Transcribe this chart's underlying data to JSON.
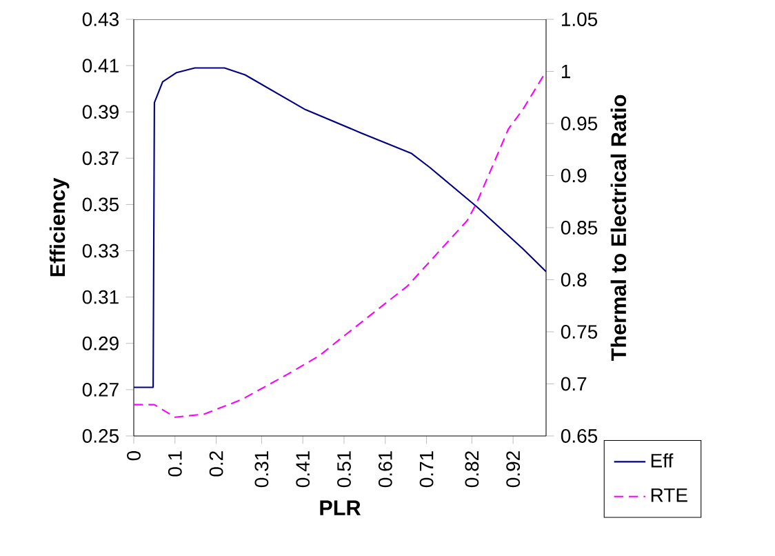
{
  "chart_data": {
    "type": "line",
    "xlabel": "PLR",
    "ylabel": "Efficiency",
    "y2label": "Thermal to Electrical Ratio",
    "xlim": [
      0,
      1
    ],
    "xticks": [
      0,
      0.1,
      0.2,
      0.31,
      0.41,
      0.51,
      0.61,
      0.71,
      0.82,
      0.92
    ],
    "ylim": [
      0.25,
      0.43
    ],
    "yticks": [
      0.25,
      0.27,
      0.29,
      0.31,
      0.33,
      0.35,
      0.37,
      0.39,
      0.41,
      0.43
    ],
    "y2lim": [
      0.65,
      1.05
    ],
    "y2ticks": [
      0.65,
      0.7,
      0.75,
      0.8,
      0.85,
      0.9,
      0.95,
      1,
      1.05
    ],
    "legend": "bottom right",
    "grid": false,
    "marker": "none",
    "series": [
      {
        "name": "Eff",
        "color": "#000080",
        "line_style": "solid",
        "x": [
          0,
          0.047,
          0.05,
          0.07,
          0.104,
          0.148,
          0.22,
          0.27,
          0.416,
          0.55,
          0.674,
          0.718,
          0.832,
          0.943,
          1.0
        ],
        "values": [
          0.271,
          0.271,
          0.394,
          0.403,
          0.407,
          0.409,
          0.409,
          0.406,
          0.391,
          0.381,
          0.372,
          0.366,
          0.349,
          0.331,
          0.321
        ]
      },
      {
        "name": "RTE",
        "color": "#ff00ff",
        "line_style": "dashed",
        "axis": "y2",
        "x": [
          0,
          0.05,
          0.1,
          0.171,
          0.262,
          0.372,
          0.45,
          0.497,
          0.664,
          0.809,
          0.832,
          0.909,
          0.943,
          1.0
        ],
        "values": [
          0.68,
          0.68,
          0.668,
          0.671,
          0.685,
          0.709,
          0.727,
          0.742,
          0.794,
          0.857,
          0.874,
          0.945,
          0.963,
          1.0
        ]
      }
    ]
  }
}
